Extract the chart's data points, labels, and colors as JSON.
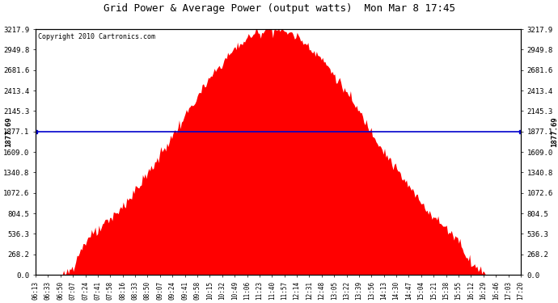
{
  "title": "Grid Power & Average Power (output watts)  Mon Mar 8 17:45",
  "copyright": "Copyright 2010 Cartronics.com",
  "avg_power": 1877.69,
  "avg_label": "1877.69",
  "y_max": 3217.9,
  "y_ticks": [
    0.0,
    268.2,
    536.3,
    804.5,
    1072.6,
    1340.8,
    1609.0,
    1877.1,
    2145.3,
    2413.4,
    2681.6,
    2949.8,
    3217.9
  ],
  "fill_color": "#FF0000",
  "avg_line_color": "#0000CC",
  "bg_color": "#FFFFFF",
  "plot_bg_color": "#FFFFFF",
  "x_labels": [
    "06:13",
    "06:33",
    "06:50",
    "07:07",
    "07:24",
    "07:41",
    "07:58",
    "08:16",
    "08:33",
    "08:50",
    "09:07",
    "09:24",
    "09:41",
    "09:58",
    "10:15",
    "10:32",
    "10:49",
    "11:06",
    "11:23",
    "11:40",
    "11:57",
    "12:14",
    "12:31",
    "12:48",
    "13:05",
    "13:22",
    "13:39",
    "13:56",
    "14:13",
    "14:30",
    "14:47",
    "15:04",
    "15:21",
    "15:38",
    "15:55",
    "16:12",
    "16:29",
    "16:46",
    "17:03",
    "17:20"
  ],
  "peak_power": 3217.9,
  "n_points": 400
}
